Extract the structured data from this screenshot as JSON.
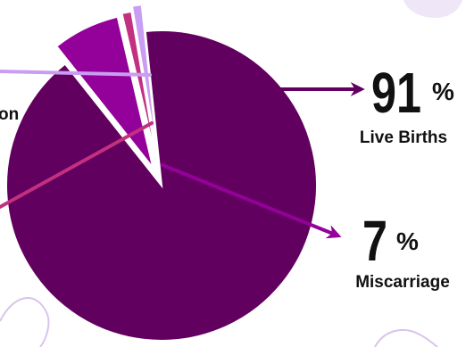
{
  "chart_data": {
    "type": "pie",
    "title": "",
    "legend": "none",
    "slices": [
      {
        "label": "Live Births",
        "value": 91,
        "color": "#62005f"
      },
      {
        "label": "Miscarriage",
        "value": 7,
        "color": "#94009a"
      },
      {
        "label": "on",
        "value": 1,
        "color": "#c2307f"
      },
      {
        "label": "",
        "value": 1,
        "color": "#c99df2"
      }
    ],
    "annotations": [
      {
        "value_text": "91",
        "percent_sign": "%",
        "label": "Live Births"
      },
      {
        "value_text": "7",
        "percent_sign": "%",
        "label": "Miscarriage"
      }
    ],
    "partial_label": "on"
  },
  "colors": {
    "background": "#ffffff",
    "decoration": "#efe6f8",
    "arrow_live": "#62005f",
    "arrow_miscarriage": "#94009a",
    "leader_pink": "#c2307f",
    "leader_lavender": "#c99df2",
    "text": "#111111"
  }
}
